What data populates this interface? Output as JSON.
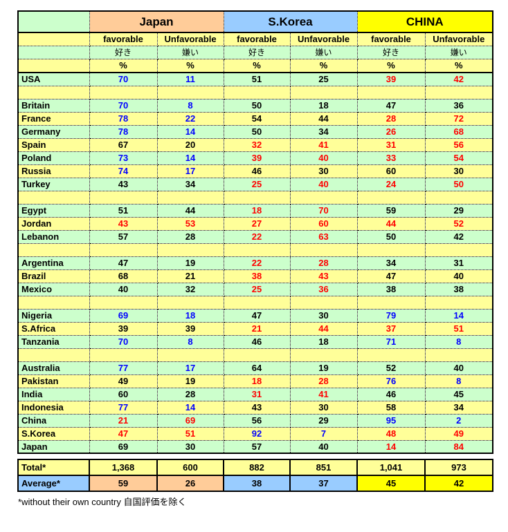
{
  "header": {
    "groups": [
      {
        "label": "Japan"
      },
      {
        "label": "S.Korea"
      },
      {
        "label": "CHINA"
      }
    ],
    "favorable": "favorable",
    "unfavorable": "Unfavorable",
    "favorable_jp": "好き",
    "unfavorable_jp": "嫌い",
    "percent": "%"
  },
  "colors": {
    "pale_green": "#CCFFCC",
    "pale_yellow": "#FFFF99",
    "japan_header": "#FFCC99",
    "skorea_header": "#99CCFF",
    "china_header": "#FFFF00",
    "value_blue": "#0000FF",
    "value_red": "#FF0000",
    "value_black": "#000000"
  },
  "rows": [
    {
      "country": "USA",
      "values": [
        {
          "v": "70",
          "c": "blue"
        },
        {
          "v": "11",
          "c": "blue"
        },
        {
          "v": "51",
          "c": "black"
        },
        {
          "v": "25",
          "c": "black"
        },
        {
          "v": "39",
          "c": "red"
        },
        {
          "v": "42",
          "c": "red"
        }
      ]
    },
    {
      "spacer": true
    },
    {
      "country": "Britain",
      "values": [
        {
          "v": "70",
          "c": "blue"
        },
        {
          "v": "8",
          "c": "blue"
        },
        {
          "v": "50",
          "c": "black"
        },
        {
          "v": "18",
          "c": "black"
        },
        {
          "v": "47",
          "c": "black"
        },
        {
          "v": "36",
          "c": "black"
        }
      ]
    },
    {
      "country": "France",
      "values": [
        {
          "v": "78",
          "c": "blue"
        },
        {
          "v": "22",
          "c": "blue"
        },
        {
          "v": "54",
          "c": "black"
        },
        {
          "v": "44",
          "c": "black"
        },
        {
          "v": "28",
          "c": "red"
        },
        {
          "v": "72",
          "c": "red"
        }
      ]
    },
    {
      "country": "Germany",
      "values": [
        {
          "v": "78",
          "c": "blue"
        },
        {
          "v": "14",
          "c": "blue"
        },
        {
          "v": "50",
          "c": "black"
        },
        {
          "v": "34",
          "c": "black"
        },
        {
          "v": "26",
          "c": "red"
        },
        {
          "v": "68",
          "c": "red"
        }
      ]
    },
    {
      "country": "Spain",
      "values": [
        {
          "v": "67",
          "c": "black"
        },
        {
          "v": "20",
          "c": "black"
        },
        {
          "v": "32",
          "c": "red"
        },
        {
          "v": "41",
          "c": "red"
        },
        {
          "v": "31",
          "c": "red"
        },
        {
          "v": "56",
          "c": "red"
        }
      ]
    },
    {
      "country": "Poland",
      "values": [
        {
          "v": "73",
          "c": "blue"
        },
        {
          "v": "14",
          "c": "blue"
        },
        {
          "v": "39",
          "c": "red"
        },
        {
          "v": "40",
          "c": "red"
        },
        {
          "v": "33",
          "c": "red"
        },
        {
          "v": "54",
          "c": "red"
        }
      ]
    },
    {
      "country": "Russia",
      "values": [
        {
          "v": "74",
          "c": "blue"
        },
        {
          "v": "17",
          "c": "blue"
        },
        {
          "v": "46",
          "c": "black"
        },
        {
          "v": "30",
          "c": "black"
        },
        {
          "v": "60",
          "c": "black"
        },
        {
          "v": "30",
          "c": "black"
        }
      ]
    },
    {
      "country": "Turkey",
      "values": [
        {
          "v": "43",
          "c": "black"
        },
        {
          "v": "34",
          "c": "black"
        },
        {
          "v": "25",
          "c": "red"
        },
        {
          "v": "40",
          "c": "red"
        },
        {
          "v": "24",
          "c": "red"
        },
        {
          "v": "50",
          "c": "red"
        }
      ]
    },
    {
      "spacer": true
    },
    {
      "country": "Egypt",
      "values": [
        {
          "v": "51",
          "c": "black"
        },
        {
          "v": "44",
          "c": "black"
        },
        {
          "v": "18",
          "c": "red"
        },
        {
          "v": "70",
          "c": "red"
        },
        {
          "v": "59",
          "c": "black"
        },
        {
          "v": "29",
          "c": "black"
        }
      ]
    },
    {
      "country": "Jordan",
      "values": [
        {
          "v": "43",
          "c": "red"
        },
        {
          "v": "53",
          "c": "red"
        },
        {
          "v": "27",
          "c": "red"
        },
        {
          "v": "60",
          "c": "red"
        },
        {
          "v": "44",
          "c": "red"
        },
        {
          "v": "52",
          "c": "red"
        }
      ]
    },
    {
      "country": "Lebanon",
      "values": [
        {
          "v": "57",
          "c": "black"
        },
        {
          "v": "28",
          "c": "black"
        },
        {
          "v": "22",
          "c": "red"
        },
        {
          "v": "63",
          "c": "red"
        },
        {
          "v": "50",
          "c": "black"
        },
        {
          "v": "42",
          "c": "black"
        }
      ]
    },
    {
      "spacer": true
    },
    {
      "country": "Argentina",
      "values": [
        {
          "v": "47",
          "c": "black"
        },
        {
          "v": "19",
          "c": "black"
        },
        {
          "v": "22",
          "c": "red"
        },
        {
          "v": "28",
          "c": "red"
        },
        {
          "v": "34",
          "c": "black"
        },
        {
          "v": "31",
          "c": "black"
        }
      ]
    },
    {
      "country": "Brazil",
      "values": [
        {
          "v": "68",
          "c": "black"
        },
        {
          "v": "21",
          "c": "black"
        },
        {
          "v": "38",
          "c": "red"
        },
        {
          "v": "43",
          "c": "red"
        },
        {
          "v": "47",
          "c": "black"
        },
        {
          "v": "40",
          "c": "black"
        }
      ]
    },
    {
      "country": "Mexico",
      "values": [
        {
          "v": "40",
          "c": "black"
        },
        {
          "v": "32",
          "c": "black"
        },
        {
          "v": "25",
          "c": "red"
        },
        {
          "v": "36",
          "c": "red"
        },
        {
          "v": "38",
          "c": "black"
        },
        {
          "v": "38",
          "c": "black"
        }
      ]
    },
    {
      "spacer": true
    },
    {
      "country": "Nigeria",
      "values": [
        {
          "v": "69",
          "c": "blue"
        },
        {
          "v": "18",
          "c": "blue"
        },
        {
          "v": "47",
          "c": "black"
        },
        {
          "v": "30",
          "c": "black"
        },
        {
          "v": "79",
          "c": "blue"
        },
        {
          "v": "14",
          "c": "blue"
        }
      ]
    },
    {
      "country": "S.Africa",
      "values": [
        {
          "v": "39",
          "c": "black"
        },
        {
          "v": "39",
          "c": "black"
        },
        {
          "v": "21",
          "c": "red"
        },
        {
          "v": "44",
          "c": "red"
        },
        {
          "v": "37",
          "c": "red"
        },
        {
          "v": "51",
          "c": "red"
        }
      ]
    },
    {
      "country": "Tanzania",
      "values": [
        {
          "v": "70",
          "c": "blue"
        },
        {
          "v": "8",
          "c": "blue"
        },
        {
          "v": "46",
          "c": "black"
        },
        {
          "v": "18",
          "c": "black"
        },
        {
          "v": "71",
          "c": "blue"
        },
        {
          "v": "8",
          "c": "blue"
        }
      ]
    },
    {
      "spacer": true
    },
    {
      "country": "Australia",
      "values": [
        {
          "v": "77",
          "c": "blue"
        },
        {
          "v": "17",
          "c": "blue"
        },
        {
          "v": "64",
          "c": "black"
        },
        {
          "v": "19",
          "c": "black"
        },
        {
          "v": "52",
          "c": "black"
        },
        {
          "v": "40",
          "c": "black"
        }
      ]
    },
    {
      "country": "Pakistan",
      "values": [
        {
          "v": "49",
          "c": "black"
        },
        {
          "v": "19",
          "c": "black"
        },
        {
          "v": "18",
          "c": "red"
        },
        {
          "v": "28",
          "c": "red"
        },
        {
          "v": "76",
          "c": "blue"
        },
        {
          "v": "8",
          "c": "blue"
        }
      ]
    },
    {
      "country": "India",
      "values": [
        {
          "v": "60",
          "c": "black"
        },
        {
          "v": "28",
          "c": "black"
        },
        {
          "v": "31",
          "c": "red"
        },
        {
          "v": "41",
          "c": "red"
        },
        {
          "v": "46",
          "c": "black"
        },
        {
          "v": "45",
          "c": "black"
        }
      ]
    },
    {
      "country": "Indonesia",
      "values": [
        {
          "v": "77",
          "c": "blue"
        },
        {
          "v": "14",
          "c": "blue"
        },
        {
          "v": "43",
          "c": "black"
        },
        {
          "v": "30",
          "c": "black"
        },
        {
          "v": "58",
          "c": "black"
        },
        {
          "v": "34",
          "c": "black"
        }
      ]
    },
    {
      "country": "China",
      "values": [
        {
          "v": "21",
          "c": "red"
        },
        {
          "v": "69",
          "c": "red"
        },
        {
          "v": "56",
          "c": "black"
        },
        {
          "v": "29",
          "c": "black"
        },
        {
          "v": "95",
          "c": "blue"
        },
        {
          "v": "2",
          "c": "blue"
        }
      ]
    },
    {
      "country": "S.Korea",
      "values": [
        {
          "v": "47",
          "c": "red"
        },
        {
          "v": "51",
          "c": "red"
        },
        {
          "v": "92",
          "c": "blue"
        },
        {
          "v": "7",
          "c": "blue"
        },
        {
          "v": "48",
          "c": "red"
        },
        {
          "v": "49",
          "c": "red"
        }
      ]
    },
    {
      "country": "Japan",
      "values": [
        {
          "v": "69",
          "c": "black"
        },
        {
          "v": "30",
          "c": "black"
        },
        {
          "v": "57",
          "c": "black"
        },
        {
          "v": "40",
          "c": "black"
        },
        {
          "v": "14",
          "c": "red"
        },
        {
          "v": "84",
          "c": "red"
        }
      ]
    }
  ],
  "totals": {
    "label": "Total*",
    "values": [
      "1,368",
      "600",
      "882",
      "851",
      "1,041",
      "973"
    ]
  },
  "averages": {
    "label": "Average*",
    "values": [
      "59",
      "26",
      "38",
      "37",
      "45",
      "42"
    ]
  },
  "footnote": "*without their own country 自国評価を除く"
}
